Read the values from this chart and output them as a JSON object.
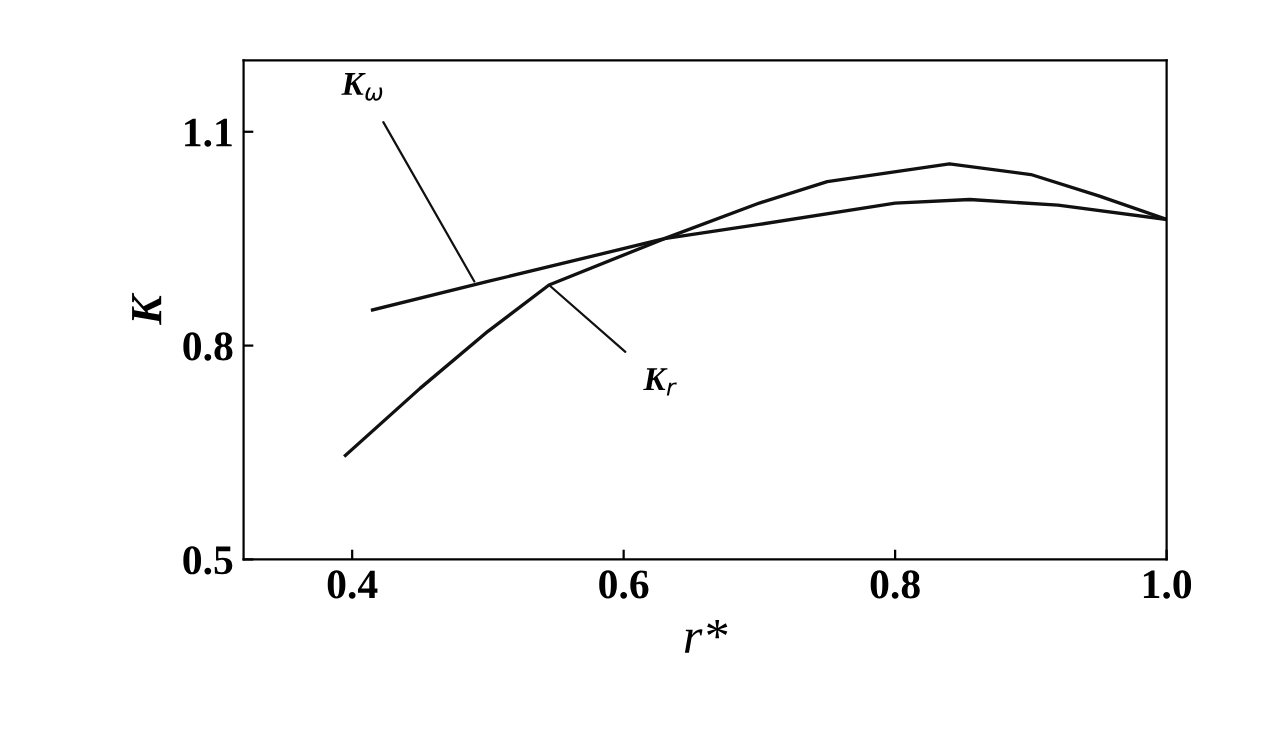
{
  "chart_data": {
    "type": "line",
    "xlabel": "r*",
    "ylabel": "K",
    "xlim": [
      0.32,
      1.0
    ],
    "ylim": [
      0.5,
      1.2
    ],
    "xticks": [
      0.4,
      0.6,
      0.8,
      {
        "value": 1.0,
        "label": "1.0"
      }
    ],
    "yticks": [
      0.5,
      0.8,
      1.1
    ],
    "grid": false,
    "legend": false,
    "marker": "none",
    "line_style": "solid",
    "series": [
      {
        "color": "#111111",
        "x": [
          0.415,
          0.5,
          0.63,
          0.7,
          0.8,
          0.855,
          0.92,
          1.0
        ],
        "values": [
          0.85,
          0.89,
          0.95,
          0.97,
          1.0,
          1.005,
          0.997,
          0.977
        ]
      },
      {
        "color": "#111111",
        "x": [
          0.395,
          0.45,
          0.5,
          0.545,
          0.63,
          0.7,
          0.75,
          0.84,
          0.9,
          0.95,
          1.0
        ],
        "values": [
          0.646,
          0.74,
          0.82,
          0.885,
          0.95,
          1.0,
          1.03,
          1.055,
          1.04,
          1.01,
          0.977
        ]
      }
    ],
    "annotations": [
      {
        "text": "K$_{ω}$",
        "x": 0.49,
        "y": 0.89
      },
      {
        "text": "K$_{r}$",
        "x": 0.545,
        "y": 0.885
      }
    ]
  }
}
